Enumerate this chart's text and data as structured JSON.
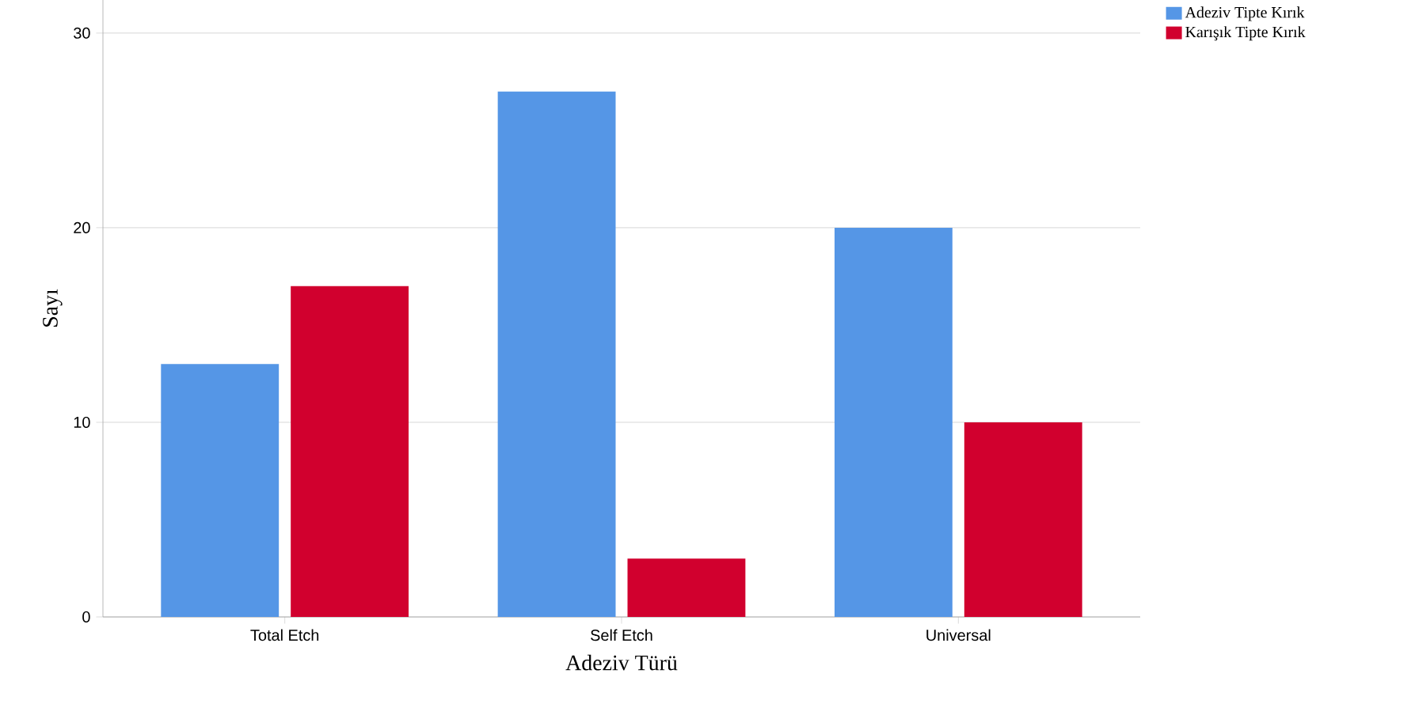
{
  "chart_data": {
    "type": "bar",
    "xlabel": "Adeziv Türü",
    "ylabel": "Sayı",
    "categories": [
      "Total Etch",
      "Self Etch",
      "Universal"
    ],
    "series": [
      {
        "name": "Adeziv Tipte Kırık",
        "color": "#5596e6",
        "values": [
          13,
          27,
          20
        ]
      },
      {
        "name": "Karışık Tipte Kırık",
        "color": "#d1002e",
        "values": [
          17,
          3,
          10
        ]
      }
    ],
    "ylim": [
      0,
      31.7
    ],
    "yticks": [
      0,
      10,
      20,
      30
    ],
    "grid": "y",
    "legend": "top right"
  }
}
